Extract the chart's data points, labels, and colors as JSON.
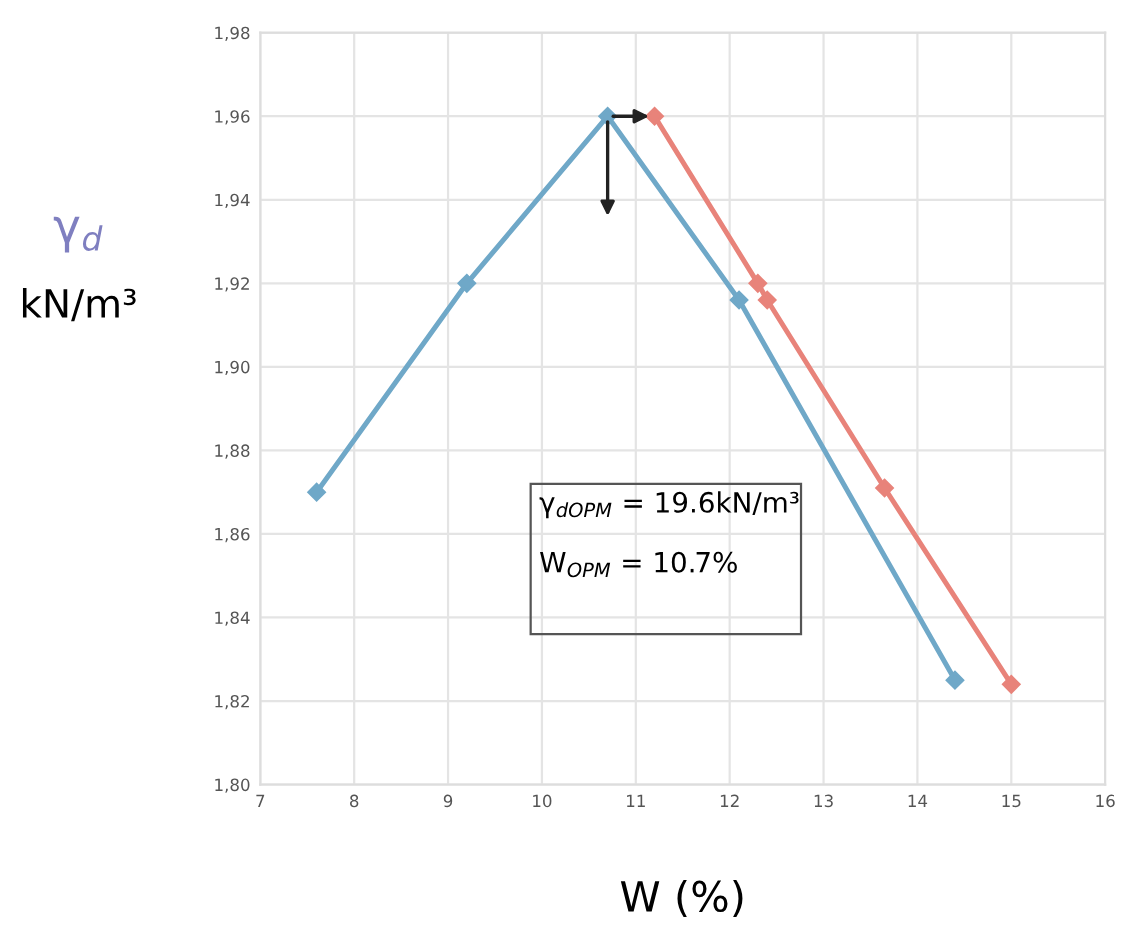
{
  "chart_data": {
    "type": "line",
    "xlabel": "W (%)",
    "ylabel": "γ$_{d}$\nkN/m³",
    "series": [
      {
        "color": "#6fa8c8",
        "x": [
          7.6,
          9.2,
          10.7,
          12.1,
          14.4
        ],
        "values": [
          1.87,
          1.92,
          1.96,
          1.916,
          1.825
        ]
      },
      {
        "color": "#e8837a",
        "x": [
          11.2,
          12.3,
          12.4,
          13.65,
          15.0
        ],
        "values": [
          1.96,
          1.92,
          1.916,
          1.871,
          1.824
        ]
      }
    ],
    "xlim": [
      7,
      16
    ],
    "xticks": [
      7,
      8,
      9,
      10,
      11,
      12,
      13,
      14,
      15,
      16
    ],
    "ylim": [
      1.8,
      1.98
    ],
    "yticks": [
      {
        "value": 1.8,
        "label": "1,80"
      },
      {
        "value": 1.82,
        "label": "1,82"
      },
      {
        "value": 1.84,
        "label": "1,84"
      },
      {
        "value": 1.86,
        "label": "1,86"
      },
      {
        "value": 1.88,
        "label": "1,88"
      },
      {
        "value": 1.9,
        "label": "1,90"
      },
      {
        "value": 1.92,
        "label": "1,92"
      },
      {
        "value": 1.94,
        "label": "1,94"
      },
      {
        "value": 1.96,
        "label": "1,96"
      },
      {
        "value": 1.98,
        "label": "1,98"
      }
    ],
    "grid": true,
    "marker": "diamond",
    "line_style": "solid",
    "legend": false,
    "annotations": [
      "γ$_{dOPM}$ = 19.6kN/m³",
      "W$_{OPM}$ = 10.7%"
    ]
  }
}
